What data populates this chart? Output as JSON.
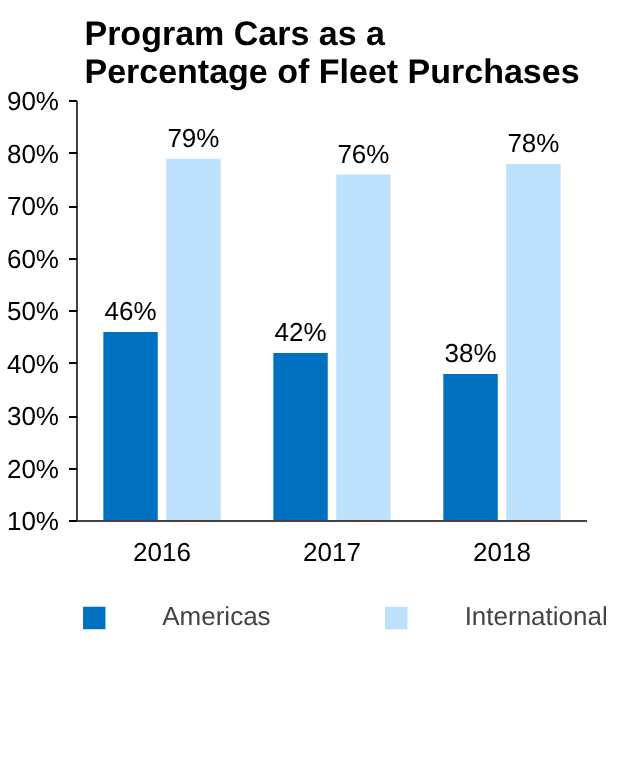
{
  "chart_data": {
    "type": "bar",
    "title": "Program Cars as a\nPercentage of Fleet Purchases",
    "categories": [
      "2016",
      "2017",
      "2018"
    ],
    "series": [
      {
        "name": "Americas",
        "color": "#0070c0",
        "values": [
          46,
          42,
          38
        ],
        "value_labels": [
          "46%",
          "42%",
          "38%"
        ]
      },
      {
        "name": "International",
        "color": "#bde0fc",
        "values": [
          79,
          76,
          78
        ],
        "value_labels": [
          "79%",
          "76%",
          "78%"
        ]
      }
    ],
    "ylim": [
      10,
      90
    ],
    "yticks": [
      {
        "value": 10,
        "label": "10%"
      },
      {
        "value": 20,
        "label": "20%"
      },
      {
        "value": 30,
        "label": "30%"
      },
      {
        "value": 40,
        "label": "40%"
      },
      {
        "value": 50,
        "label": "50%"
      },
      {
        "value": 60,
        "label": "60%"
      },
      {
        "value": 70,
        "label": "70%"
      },
      {
        "value": 80,
        "label": "80%"
      },
      {
        "value": 90,
        "label": "90%"
      }
    ],
    "grid": false,
    "legend": "bottom"
  }
}
